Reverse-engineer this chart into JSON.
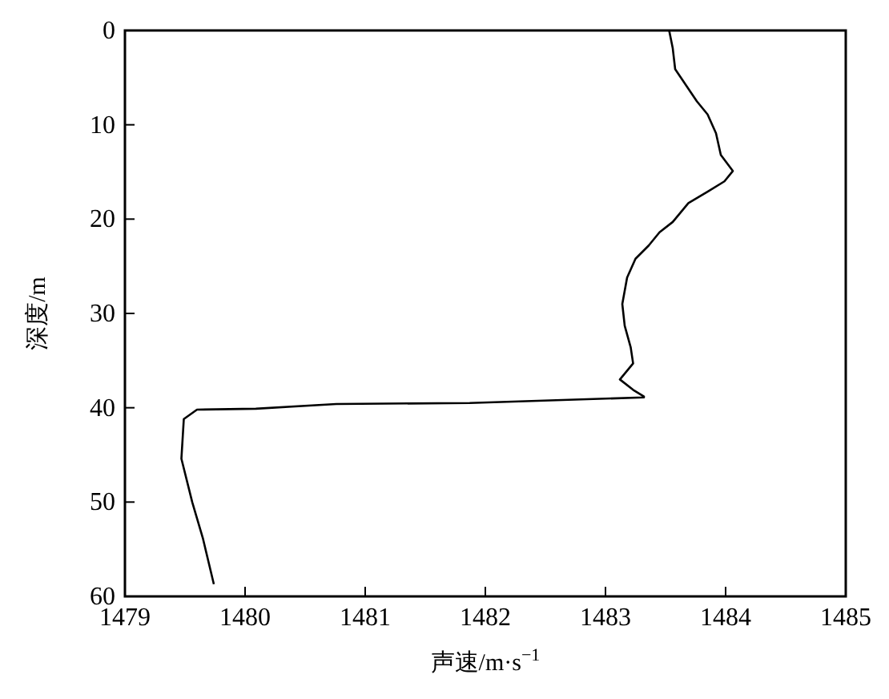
{
  "chart_data": {
    "type": "line",
    "xlabel": "声速/m·s$^{−1}$",
    "ylabel": "深度/m",
    "xlim": [
      1479,
      1485
    ],
    "xticks": [
      1479,
      1480,
      1481,
      1482,
      1483,
      1484,
      1485
    ],
    "ylim": [
      60,
      0
    ],
    "yticks": [
      0,
      10,
      20,
      30,
      40,
      50,
      60
    ],
    "grid": false,
    "marker": "none",
    "line_style": "solid",
    "series": [
      {
        "color": "#000000",
        "x": [
          1483.53,
          1483.56,
          1483.58,
          1483.67,
          1483.76,
          1483.85,
          1483.92,
          1483.96,
          1484.06,
          1483.99,
          1483.85,
          1483.69,
          1483.56,
          1483.45,
          1483.36,
          1483.25,
          1483.18,
          1483.14,
          1483.16,
          1483.21,
          1483.23,
          1483.12,
          1483.23,
          1483.32,
          1483.32,
          1481.87,
          1480.76,
          1480.09,
          1479.6,
          1479.49,
          1479.47,
          1479.56,
          1479.65,
          1479.74
        ],
        "values": [
          0,
          1.9,
          4.1,
          5.8,
          7.5,
          8.9,
          10.9,
          13.2,
          14.9,
          16.0,
          17.1,
          18.3,
          20.3,
          21.4,
          22.8,
          24.2,
          26.2,
          29.0,
          31.3,
          33.6,
          35.3,
          37.0,
          38.1,
          38.8,
          38.9,
          39.5,
          39.6,
          40.1,
          40.2,
          41.2,
          45.4,
          50.0,
          53.9,
          58.7
        ]
      }
    ]
  }
}
